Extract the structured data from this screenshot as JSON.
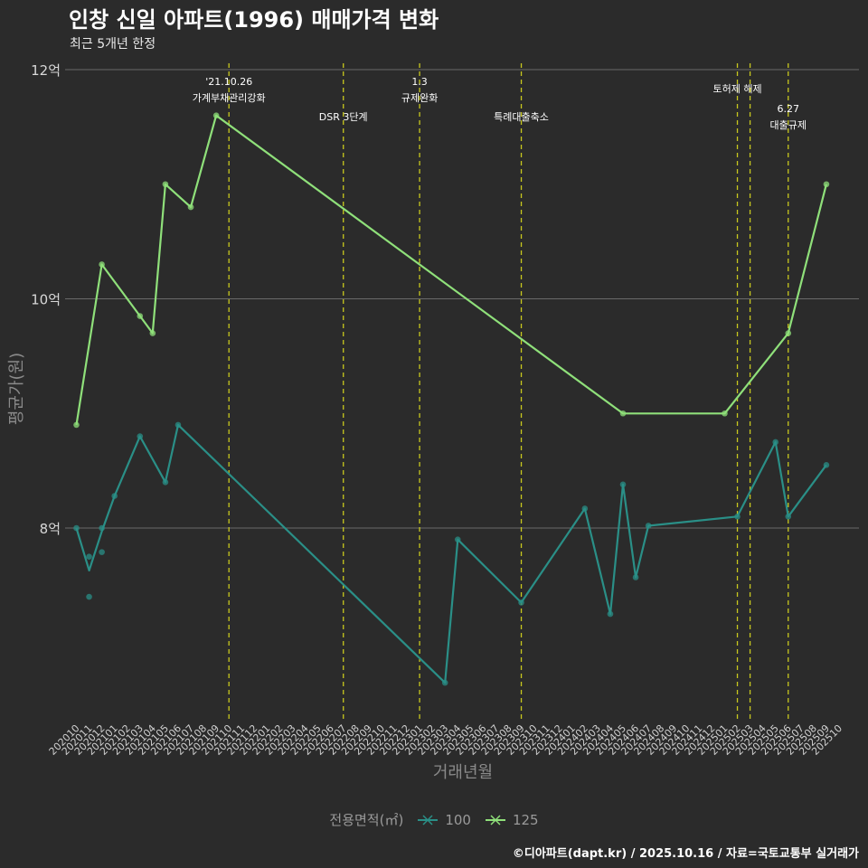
{
  "header": {
    "title": "인창 신일 아파트(1996) 매매가격 변화",
    "subtitle": "최근 5개년 한정"
  },
  "caption": "©디아파트(dapt.kr) / 2025.10.16 / 자료=국토교통부 실거래가",
  "legend": {
    "title": "전용면적(㎡)",
    "items": [
      {
        "name": "100",
        "color": "#2a8f87"
      },
      {
        "name": "125",
        "color": "#8fe07a"
      }
    ]
  },
  "chart_data": {
    "type": "line",
    "title": "인창 신일 아파트(1996) 매매가격 변화",
    "xlabel": "거래년월",
    "ylabel": "평균가(원)",
    "ylim": [
      6.2,
      12.2
    ],
    "yticks": [
      8,
      10,
      12
    ],
    "ytick_labels": [
      "8억",
      "10억",
      "12억"
    ],
    "x_categories": [
      "202010",
      "202011",
      "202012",
      "202101",
      "202102",
      "202103",
      "202104",
      "202105",
      "202106",
      "202107",
      "202108",
      "202109",
      "202110",
      "202111",
      "202112",
      "202201",
      "202202",
      "202203",
      "202204",
      "202205",
      "202206",
      "202207",
      "202208",
      "202209",
      "202210",
      "202211",
      "202212",
      "202301",
      "202302",
      "202303",
      "202304",
      "202305",
      "202306",
      "202307",
      "202308",
      "202309",
      "202310",
      "202311",
      "202312",
      "202401",
      "202402",
      "202403",
      "202404",
      "202405",
      "202406",
      "202407",
      "202408",
      "202409",
      "202410",
      "202411",
      "202412",
      "202501",
      "202502",
      "202503",
      "202504",
      "202505",
      "202506",
      "202507",
      "202508",
      "202509",
      "202510"
    ],
    "series": [
      {
        "name": "100",
        "color": "#2a8f87",
        "line": [
          [
            "202010",
            8.0
          ],
          [
            "202011",
            7.63
          ],
          [
            "202012",
            7.97
          ],
          [
            "202101",
            8.28
          ],
          [
            "202103",
            8.8
          ],
          [
            "202105",
            8.4
          ],
          [
            "202106",
            8.9
          ],
          [
            "202303",
            6.65
          ],
          [
            "202304",
            7.9
          ],
          [
            "202309",
            7.35
          ],
          [
            "202402",
            8.17
          ],
          [
            "202404",
            7.25
          ],
          [
            "202405",
            8.38
          ],
          [
            "202406",
            7.57
          ],
          [
            "202407",
            8.02
          ],
          [
            "202502",
            8.1
          ],
          [
            "202505",
            8.75
          ],
          [
            "202506",
            8.1
          ],
          [
            "202509",
            8.55
          ]
        ],
        "points": [
          [
            "202010",
            8.0
          ],
          [
            "202011",
            7.75
          ],
          [
            "202011",
            7.4
          ],
          [
            "202012",
            7.79
          ],
          [
            "202012",
            8.0
          ],
          [
            "202101",
            8.28
          ],
          [
            "202103",
            8.8
          ],
          [
            "202105",
            8.4
          ],
          [
            "202106",
            8.9
          ],
          [
            "202303",
            6.65
          ],
          [
            "202304",
            7.9
          ],
          [
            "202309",
            7.35
          ],
          [
            "202402",
            8.17
          ],
          [
            "202404",
            7.25
          ],
          [
            "202405",
            8.38
          ],
          [
            "202406",
            7.57
          ],
          [
            "202407",
            8.02
          ],
          [
            "202502",
            8.1
          ],
          [
            "202505",
            8.75
          ],
          [
            "202506",
            8.1
          ],
          [
            "202509",
            8.55
          ]
        ]
      },
      {
        "name": "125",
        "color": "#8fe07a",
        "line": [
          [
            "202010",
            8.9
          ],
          [
            "202012",
            10.3
          ],
          [
            "202103",
            9.85
          ],
          [
            "202104",
            9.7
          ],
          [
            "202105",
            11.0
          ],
          [
            "202107",
            10.8
          ],
          [
            "202109",
            11.6
          ],
          [
            "202405",
            9.0
          ],
          [
            "202501",
            9.0
          ],
          [
            "202506",
            9.7
          ],
          [
            "202509",
            11.0
          ]
        ],
        "points": [
          [
            "202010",
            8.9
          ],
          [
            "202012",
            10.3
          ],
          [
            "202103",
            9.85
          ],
          [
            "202104",
            9.7
          ],
          [
            "202105",
            11.0
          ],
          [
            "202107",
            10.8
          ],
          [
            "202109",
            11.6
          ],
          [
            "202405",
            9.0
          ],
          [
            "202501",
            9.0
          ],
          [
            "202506",
            9.7
          ],
          [
            "202509",
            11.0
          ]
        ]
      }
    ],
    "events": [
      {
        "x": "202110",
        "lines": [
          "'21.10.26",
          "가계부채관리강화"
        ],
        "row": 0
      },
      {
        "x": "202207",
        "lines": [
          "DSR 3단계"
        ],
        "row": 1
      },
      {
        "x": "202301",
        "lines": [
          "1.3",
          "규제완화"
        ],
        "row": 0
      },
      {
        "x": "202309",
        "lines": [
          "특례대출축소"
        ],
        "row": 1
      },
      {
        "x": "202502",
        "lines": [
          "토허제 해제"
        ],
        "row": 2
      },
      {
        "x": "202503",
        "lines": [],
        "row": 2
      },
      {
        "x": "202506",
        "lines": [
          "6.27",
          "대출규제"
        ],
        "row": 3
      }
    ]
  }
}
